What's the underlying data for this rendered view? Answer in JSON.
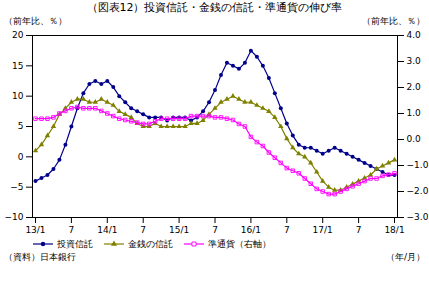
{
  "chart_data": {
    "type": "line",
    "title": "（図表12）投資信託・金銭の信託・準通貨の伸び率",
    "xlabel": "（年/月）",
    "ylabel": "（前年比、％）",
    "y2label": "（前年比、％）",
    "annotations": [
      "（資料）日本銀行"
    ],
    "categories": [
      "13/1",
      null,
      null,
      null,
      null,
      null,
      "7",
      null,
      null,
      null,
      null,
      null,
      "14/1",
      null,
      null,
      null,
      null,
      null,
      "7",
      null,
      null,
      null,
      null,
      null,
      "15/1",
      null,
      null,
      null,
      null,
      null,
      "7",
      null,
      null,
      null,
      null,
      null,
      "16/1",
      null,
      null,
      null,
      null,
      null,
      "7",
      null,
      null,
      null,
      null,
      null,
      "17/1",
      null,
      null,
      null,
      null,
      null,
      "7",
      null,
      null,
      null,
      null,
      null,
      "18/1"
    ],
    "ylim": [
      -10,
      20
    ],
    "yticks": [
      -10,
      -5,
      0,
      5,
      10,
      15,
      20
    ],
    "y2lim": [
      -3,
      4
    ],
    "y2ticks": [
      -3,
      -2,
      -1,
      0,
      1,
      2,
      3,
      4
    ],
    "legend": "lower left",
    "series": [
      {
        "name": "投資信託",
        "color": "#00008B",
        "marker": "circle",
        "values": [
          -4.0,
          -3.5,
          -3.0,
          -2.0,
          -0.5,
          2.0,
          5.0,
          8.0,
          10.5,
          12.0,
          12.5,
          12.0,
          12.5,
          11.5,
          10.0,
          9.0,
          8.0,
          7.5,
          7.0,
          6.5,
          6.5,
          6.5,
          6.0,
          6.5,
          6.5,
          6.5,
          6.0,
          6.5,
          7.5,
          9.0,
          11.0,
          13.5,
          15.5,
          15.0,
          14.5,
          15.5,
          17.5,
          16.5,
          15.0,
          13.0,
          10.5,
          8.0,
          5.5,
          3.5,
          2.0,
          1.5,
          1.5,
          1.0,
          0.5,
          1.0,
          1.5,
          1.0,
          0.5,
          0.0,
          -0.5,
          -1.0,
          -1.5,
          -2.0,
          -2.5,
          -3.0,
          -3.0
        ]
      },
      {
        "name": "金銭の信託",
        "color": "#808000",
        "marker": "triangle",
        "values": [
          1.0,
          2.0,
          3.5,
          5.0,
          7.0,
          8.0,
          9.0,
          9.5,
          9.5,
          9.0,
          9.0,
          9.5,
          9.0,
          8.5,
          7.5,
          7.0,
          6.5,
          5.5,
          5.0,
          5.0,
          5.5,
          5.0,
          5.0,
          5.0,
          5.0,
          5.0,
          5.5,
          5.5,
          6.0,
          7.0,
          8.0,
          9.0,
          9.5,
          10.0,
          9.5,
          9.0,
          9.0,
          8.5,
          8.0,
          7.5,
          6.5,
          5.0,
          3.0,
          1.5,
          0.5,
          0.0,
          -1.0,
          -2.5,
          -4.0,
          -5.0,
          -5.5,
          -5.5,
          -5.0,
          -4.5,
          -4.0,
          -3.5,
          -3.0,
          -2.0,
          -1.5,
          -1.0,
          -0.5
        ]
      },
      {
        "name": "準通貨（右軸）",
        "color": "#FF00FF",
        "marker": "square-open",
        "axis": "y2",
        "values": [
          0.8,
          0.8,
          0.8,
          0.85,
          1.0,
          1.1,
          1.2,
          1.25,
          1.2,
          1.2,
          1.2,
          1.1,
          1.0,
          0.9,
          0.8,
          0.75,
          0.7,
          0.65,
          0.6,
          0.6,
          0.7,
          0.8,
          0.8,
          0.8,
          0.8,
          0.8,
          0.9,
          0.9,
          0.9,
          0.9,
          0.85,
          0.85,
          0.8,
          0.75,
          0.6,
          0.5,
          0.1,
          -0.1,
          -0.25,
          -0.5,
          -0.7,
          -0.9,
          -1.1,
          -1.2,
          -1.3,
          -1.5,
          -1.7,
          -1.9,
          -2.0,
          -2.1,
          -2.1,
          -2.0,
          -1.9,
          -1.8,
          -1.7,
          -1.6,
          -1.5,
          -1.5,
          -1.4,
          -1.35,
          -1.3
        ]
      }
    ]
  }
}
